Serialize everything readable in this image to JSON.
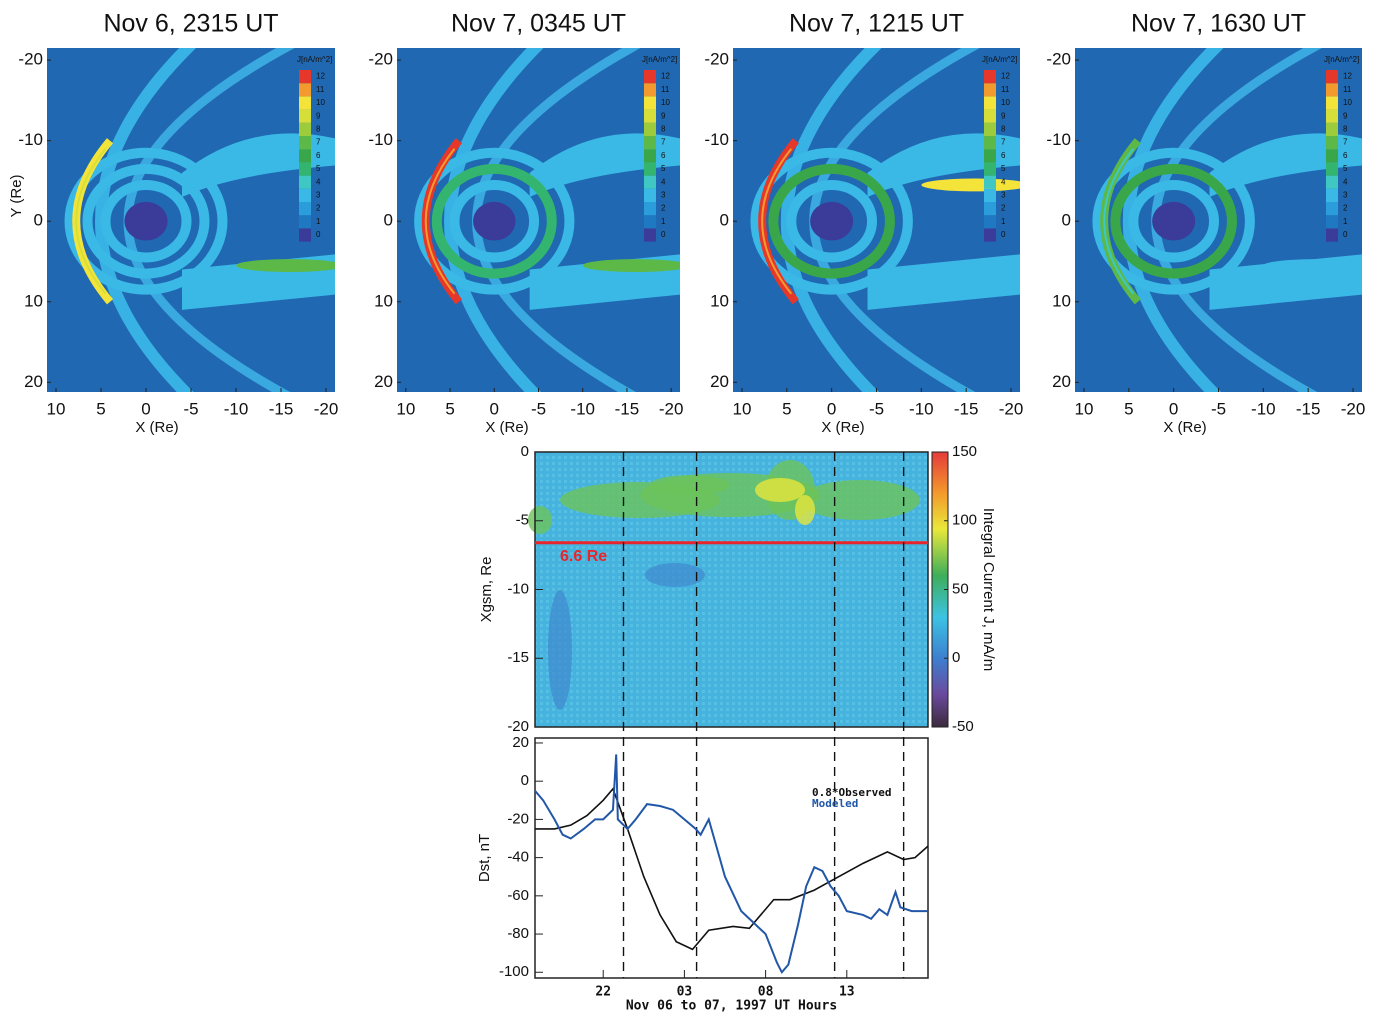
{
  "chart_data": [
    {
      "type": "contour",
      "title": "Nov 6, 2315 UT",
      "xlabel": "X (Re)",
      "ylabel": "Y (Re)",
      "xlim": [
        11,
        -21
      ],
      "ylim": [
        -21.5,
        21.2
      ],
      "xticks": [
        10,
        5,
        0,
        -5,
        -10,
        -15,
        -20
      ],
      "yticks": [
        -20,
        -10,
        0,
        10,
        20
      ],
      "colorbar": {
        "title": "J[nA/m^2]",
        "levels": [
          0,
          1,
          2,
          3,
          4,
          5,
          6,
          7,
          8,
          9,
          10,
          11,
          12
        ],
        "colors": [
          "#3b3b9a",
          "#1f78c2",
          "#2c9ddb",
          "#3ab8e6",
          "#3fc7c4",
          "#33b46f",
          "#3aa64a",
          "#5cb948",
          "#9ccb3c",
          "#d6df3a",
          "#f4e43a",
          "#f29a2d",
          "#e5382a"
        ]
      }
    },
    {
      "type": "contour",
      "title": "Nov 7, 0345 UT",
      "xlabel": "X (Re)",
      "xlim": [
        11,
        -21
      ],
      "ylim": [
        -21.5,
        21.2
      ],
      "xticks": [
        10,
        5,
        0,
        -5,
        -10,
        -15,
        -20
      ],
      "yticks": [
        -20,
        -10,
        0,
        10,
        20
      ],
      "colorbar": {
        "title": "J[nA/m^2]",
        "levels": [
          0,
          1,
          2,
          3,
          4,
          5,
          6,
          7,
          8,
          9,
          10,
          11,
          12
        ],
        "colors": [
          "#3b3b9a",
          "#1f78c2",
          "#2c9ddb",
          "#3ab8e6",
          "#3fc7c4",
          "#33b46f",
          "#3aa64a",
          "#5cb948",
          "#9ccb3c",
          "#d6df3a",
          "#f4e43a",
          "#f29a2d",
          "#e5382a"
        ]
      }
    },
    {
      "type": "contour",
      "title": "Nov 7, 1215 UT",
      "xlabel": "X (Re)",
      "xlim": [
        11,
        -21
      ],
      "ylim": [
        -21.5,
        21.2
      ],
      "xticks": [
        10,
        5,
        0,
        -5,
        -10,
        -15,
        -20
      ],
      "yticks": [
        -20,
        -10,
        0,
        10,
        20
      ],
      "colorbar": {
        "title": "J[nA/m^2]",
        "levels": [
          0,
          1,
          2,
          3,
          4,
          5,
          6,
          7,
          8,
          9,
          10,
          11,
          12
        ],
        "colors": [
          "#3b3b9a",
          "#1f78c2",
          "#2c9ddb",
          "#3ab8e6",
          "#3fc7c4",
          "#33b46f",
          "#3aa64a",
          "#5cb948",
          "#9ccb3c",
          "#d6df3a",
          "#f4e43a",
          "#f29a2d",
          "#e5382a"
        ]
      }
    },
    {
      "type": "contour",
      "title": "Nov 7, 1630 UT",
      "xlabel": "X (Re)",
      "xlim": [
        11,
        -21
      ],
      "ylim": [
        -21.5,
        21.2
      ],
      "xticks": [
        10,
        5,
        0,
        -5,
        -10,
        -15,
        -20
      ],
      "yticks": [
        -20,
        -10,
        0,
        10,
        20
      ],
      "colorbar": {
        "title": "J[nA/m^2]",
        "levels": [
          0,
          1,
          2,
          3,
          4,
          5,
          6,
          7,
          8,
          9,
          10,
          11,
          12
        ],
        "colors": [
          "#3b3b9a",
          "#1f78c2",
          "#2c9ddb",
          "#3ab8e6",
          "#3fc7c4",
          "#33b46f",
          "#3aa64a",
          "#5cb948",
          "#9ccb3c",
          "#d6df3a",
          "#f4e43a",
          "#f29a2d",
          "#e5382a"
        ]
      }
    },
    {
      "type": "heatmap",
      "ylabel": "Xgsm, Re",
      "ylim": [
        0,
        -20
      ],
      "yticks": [
        0,
        -5,
        -10,
        -15,
        -20
      ],
      "colorbar": {
        "label": "Integral Current J, mA/m",
        "lim": [
          -50,
          150
        ],
        "ticks": [
          150,
          100,
          50,
          0,
          -50
        ]
      },
      "hline": {
        "value": -6.6,
        "label": "6.6 Re",
        "color": "#e8252a"
      }
    },
    {
      "type": "line",
      "ylabel": "Dst, nT",
      "xlabel": "Nov 06 to 07, 1997 UT Hours",
      "xlim": [
        17.8,
        42
      ],
      "ylim": [
        -103,
        22.6
      ],
      "xticks": [
        22,
        {
          "value": 27,
          "label": "03"
        },
        {
          "value": 32,
          "label": "08"
        },
        {
          "value": 37,
          "label": "13"
        }
      ],
      "yticks": [
        20,
        0,
        -20,
        -40,
        -60,
        -80,
        -100
      ],
      "vlines": [
        23.25,
        27.75,
        36.25,
        40.5
      ],
      "series": [
        {
          "name": "0.8*Observed",
          "color": "#111111",
          "x": [
            17.8,
            19,
            20,
            21,
            22,
            22.6,
            23.5,
            24.5,
            25.5,
            26.5,
            27.5,
            28.5,
            30,
            31,
            32.5,
            33.5,
            35,
            36.5,
            38,
            39.5,
            40.5,
            41.2,
            42
          ],
          "values": [
            -25,
            -25,
            -23,
            -18,
            -10,
            -4,
            -25,
            -50,
            -70,
            -84,
            -88,
            -78,
            -76,
            -77,
            -62,
            -62,
            -57,
            -50,
            -43,
            -37,
            -41,
            -40,
            -34
          ]
        },
        {
          "name": "Modeled",
          "color": "#2257a8",
          "x": [
            17.8,
            18.3,
            19,
            19.5,
            20,
            20.8,
            21.5,
            22,
            22.6,
            22.8,
            22.9,
            23.5,
            24,
            24.7,
            25.5,
            26.3,
            27,
            27.7,
            28,
            28.5,
            29.5,
            30.5,
            31,
            32,
            32.7,
            33,
            33.4,
            34,
            34.5,
            35,
            35.5,
            36,
            36.5,
            37,
            38,
            38.5,
            39,
            39.5,
            40,
            40.3,
            41,
            42
          ],
          "values": [
            -5,
            -10,
            -20,
            -28,
            -30,
            -25,
            -20,
            -20,
            -15,
            14,
            -20,
            -25,
            -20,
            -12,
            -13,
            -15,
            -20,
            -25,
            -28,
            -20,
            -50,
            -68,
            -72,
            -80,
            -95,
            -100,
            -96,
            -75,
            -55,
            -45,
            -47,
            -55,
            -60,
            -68,
            -70,
            -72,
            -67,
            -70,
            -58,
            -66,
            -68,
            -68
          ]
        }
      ]
    }
  ]
}
